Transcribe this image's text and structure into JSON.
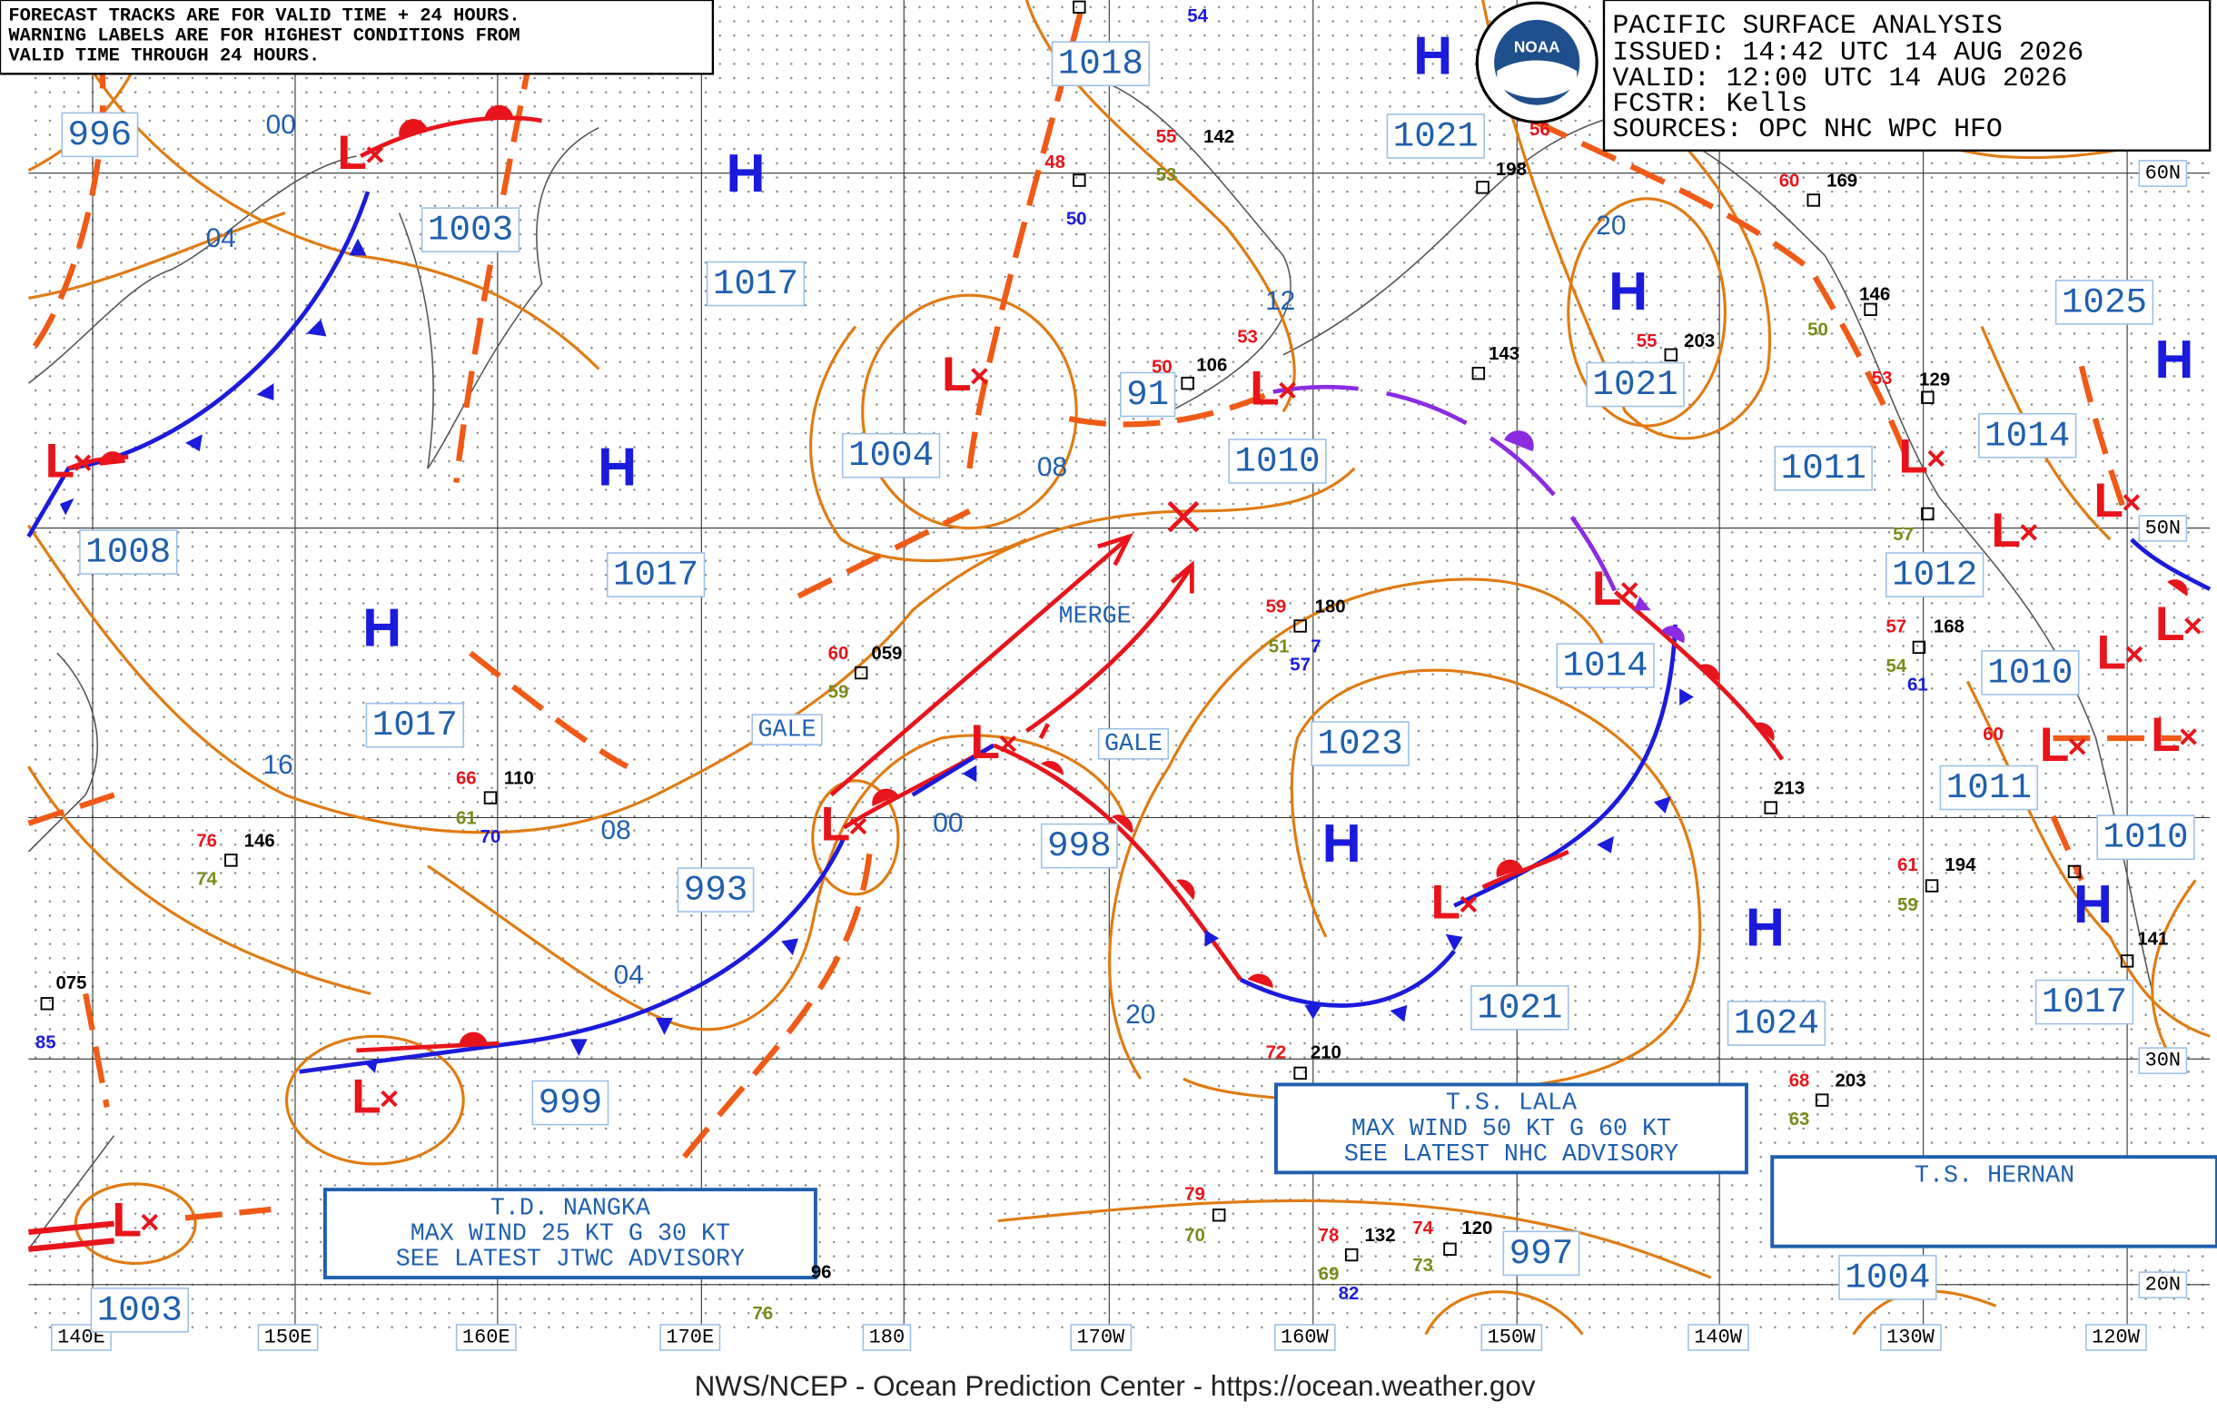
{
  "notice": [
    "FORECAST TRACKS ARE FOR VALID TIME + 24 HOURS.",
    "WARNING LABELS ARE FOR HIGHEST CONDITIONS FROM",
    "VALID TIME THROUGH 24 HOURS."
  ],
  "header": {
    "title": "PACIFIC SURFACE ANALYSIS",
    "lines": [
      "ISSUED:  14:42 UTC 14 AUG 2026",
      "VALID:  12:00 UTC 14 AUG 2026",
      "FCSTR:  Kells",
      "SOURCES: OPC NHC WPC HFO"
    ]
  },
  "logo_text": "NOAA",
  "pressure_values": [
    "996",
    "1003",
    "1017",
    "1018",
    "1021",
    "1008",
    "1004",
    "91",
    "1010",
    "1017",
    "1017",
    "1021",
    "1025",
    "1014",
    "1011",
    "1012",
    "1010",
    "1011",
    "1010",
    "1014",
    "1023",
    "998",
    "993",
    "999",
    "1021",
    "1024",
    "1017",
    "997",
    "1004",
    "1003"
  ],
  "highs": [
    "H",
    "H",
    "H",
    "H",
    "H",
    "H",
    "H",
    "H",
    "H"
  ],
  "lows": [
    "L",
    "L",
    "L",
    "L",
    "L",
    "L",
    "L",
    "L",
    "L",
    "L",
    "L",
    "L",
    "L",
    "L",
    "L",
    "L",
    "L"
  ],
  "isobar_labels": [
    "00",
    "04",
    "16",
    "08",
    "00",
    "04",
    "20",
    "08",
    "12",
    "20"
  ],
  "feature_labels": [
    "GALE",
    "GALE",
    "MERGE"
  ],
  "storm_advisories": [
    {
      "lines": [
        "T.D. NANGKA",
        "MAX WIND 25 KT G 30 KT",
        "SEE LATEST JTWC ADVISORY"
      ]
    },
    {
      "lines": [
        "T.S. LALA",
        "MAX WIND 50 KT G 60 KT",
        "SEE LATEST NHC ADVISORY"
      ]
    },
    {
      "lines": [
        "T.S. HERNAN"
      ]
    }
  ],
  "longitude_labels": [
    "140E",
    "150E",
    "160E",
    "170E",
    "180",
    "170W",
    "160W",
    "150W",
    "140W",
    "130W",
    "120W"
  ],
  "latitude_labels": [
    "60N",
    "50N",
    "30N",
    "20N"
  ],
  "station_data": [
    "54",
    "55",
    "142",
    "53",
    "48",
    "50",
    "50",
    "106",
    "53",
    "198",
    "56",
    "60",
    "169",
    "50",
    "146",
    "55",
    "203",
    "143",
    "53",
    "129",
    "57",
    "57",
    "168",
    "54",
    "61",
    "59",
    "180",
    "51",
    "7",
    "57",
    "60",
    "059",
    "59",
    "66",
    "110",
    "61",
    "70",
    "76",
    "146",
    "74",
    "075",
    "85",
    "72",
    "210",
    "68",
    "203",
    "63",
    "61",
    "194",
    "59",
    "213",
    "79",
    "70",
    "78",
    "132",
    "74",
    "120",
    "69",
    "82",
    "73",
    "96",
    "76",
    "60",
    "141"
  ],
  "footer": "NWS/NCEP - Ocean Prediction Center - https://ocean.weather.gov"
}
